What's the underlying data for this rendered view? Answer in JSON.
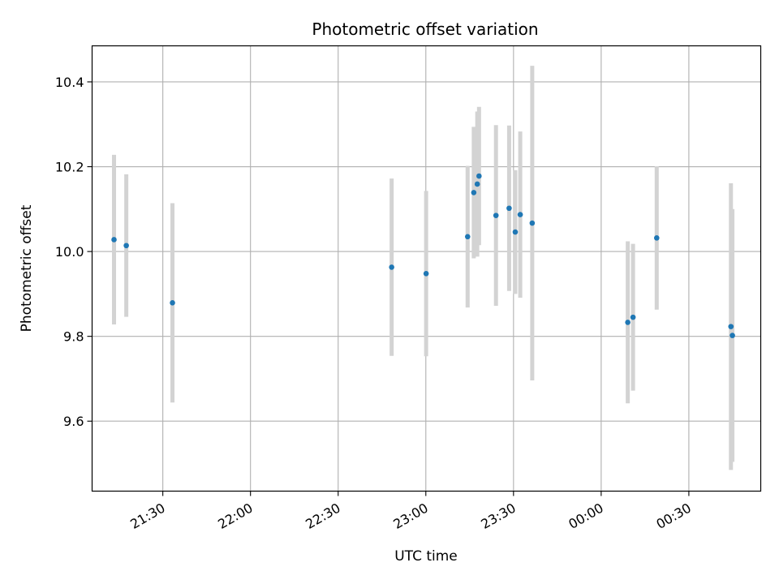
{
  "chart_data": {
    "type": "scatter",
    "title": "Photometric offset variation",
    "xlabel": "UTC time",
    "ylabel": "Photometric offset",
    "x_ticks": [
      {
        "value": 90,
        "label": "21:30"
      },
      {
        "value": 120,
        "label": "22:00"
      },
      {
        "value": 150,
        "label": "22:30"
      },
      {
        "value": 180,
        "label": "23:00"
      },
      {
        "value": 210,
        "label": "23:30"
      },
      {
        "value": 240,
        "label": "00:00"
      },
      {
        "value": 270,
        "label": "00:30"
      }
    ],
    "y_ticks": [
      {
        "value": 9.6,
        "label": "9.6"
      },
      {
        "value": 9.8,
        "label": "9.8"
      },
      {
        "value": 10.0,
        "label": "10.0"
      },
      {
        "value": 10.2,
        "label": "10.2"
      },
      {
        "value": 10.4,
        "label": "10.4"
      }
    ],
    "xlim": [
      65.8,
      294.6
    ],
    "ylim": [
      9.435,
      10.485
    ],
    "grid": true,
    "colors": {
      "point": "#1f77b4",
      "errorbar": "#d3d3d3",
      "grid": "#b0b0b0"
    },
    "points": [
      {
        "x": 73.3,
        "y": 10.028,
        "err": 0.2
      },
      {
        "x": 77.5,
        "y": 10.014,
        "err": 0.168
      },
      {
        "x": 93.3,
        "y": 9.879,
        "err": 0.235
      },
      {
        "x": 168.3,
        "y": 9.963,
        "err": 0.209
      },
      {
        "x": 180.1,
        "y": 9.948,
        "err": 0.195
      },
      {
        "x": 194.3,
        "y": 10.035,
        "err": 0.167
      },
      {
        "x": 196.4,
        "y": 10.139,
        "err": 0.155
      },
      {
        "x": 197.6,
        "y": 10.159,
        "err": 0.171
      },
      {
        "x": 198.2,
        "y": 10.178,
        "err": 0.163
      },
      {
        "x": 204.0,
        "y": 10.085,
        "err": 0.213
      },
      {
        "x": 208.5,
        "y": 10.102,
        "err": 0.195
      },
      {
        "x": 210.6,
        "y": 10.046,
        "err": 0.146
      },
      {
        "x": 212.3,
        "y": 10.087,
        "err": 0.196
      },
      {
        "x": 216.4,
        "y": 10.067,
        "err": 0.371
      },
      {
        "x": 249.1,
        "y": 9.833,
        "err": 0.191
      },
      {
        "x": 250.9,
        "y": 9.845,
        "err": 0.173
      },
      {
        "x": 259.0,
        "y": 10.032,
        "err": 0.169
      },
      {
        "x": 284.4,
        "y": 9.823,
        "err": 0.338
      },
      {
        "x": 284.9,
        "y": 9.802,
        "err": 0.298
      }
    ]
  }
}
